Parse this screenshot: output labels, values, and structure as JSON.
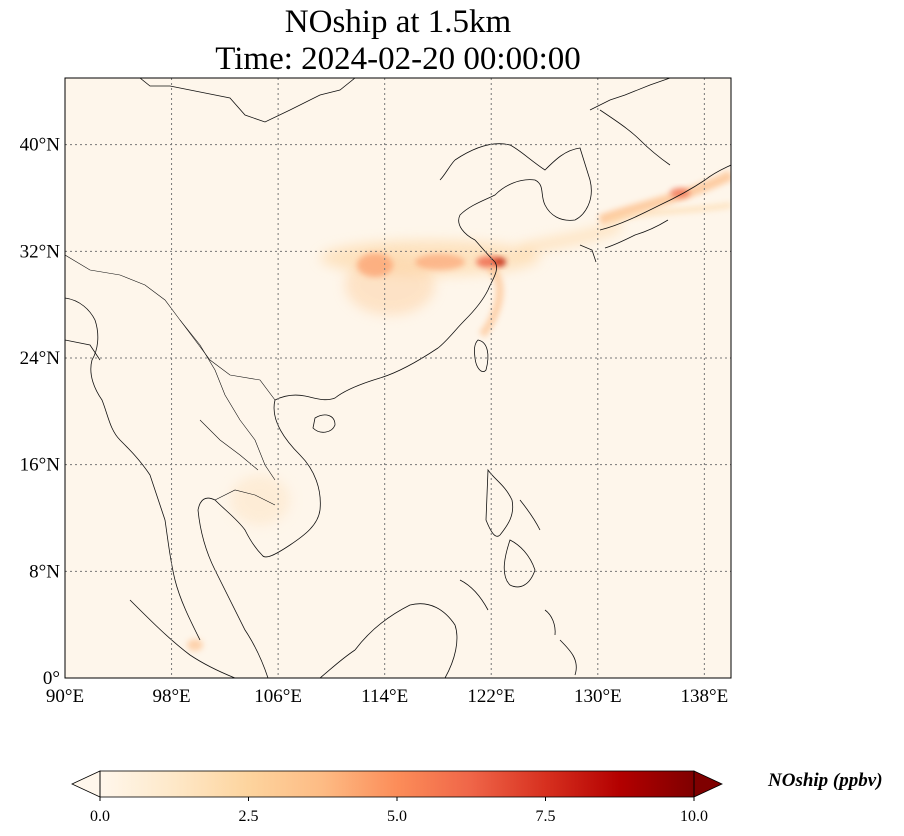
{
  "title": {
    "line1": "NOship at 1.5km",
    "line2": "Time: 2024-02-20 00:00:00"
  },
  "map": {
    "extent": {
      "lon": [
        90,
        140
      ],
      "lat": [
        0,
        45
      ]
    },
    "lat_ticks": [
      {
        "value": 40,
        "label": "40°N"
      },
      {
        "value": 32,
        "label": "32°N"
      },
      {
        "value": 24,
        "label": "24°N"
      },
      {
        "value": 16,
        "label": "16°N"
      },
      {
        "value": 8,
        "label": "8°N"
      },
      {
        "value": 0,
        "label": "0°"
      }
    ],
    "lon_ticks": [
      {
        "value": 90,
        "label": "90°E"
      },
      {
        "value": 98,
        "label": "98°E"
      },
      {
        "value": 106,
        "label": "106°E"
      },
      {
        "value": 114,
        "label": "114°E"
      },
      {
        "value": 122,
        "label": "122°E"
      },
      {
        "value": 130,
        "label": "130°E"
      },
      {
        "value": 138,
        "label": "138°E"
      }
    ],
    "gridlines": "dotted",
    "colormap": "OrRd"
  },
  "colorbar": {
    "label": "NOship (ppbv)",
    "range": [
      0,
      10
    ],
    "extend": "both",
    "ticks": [
      "0.0",
      "2.5",
      "5.0",
      "7.5",
      "10.0"
    ],
    "colors": [
      "#fff7ec",
      "#fee8c8",
      "#fdd49e",
      "#fdbb84",
      "#fc8d59",
      "#ef6548",
      "#d7301f",
      "#b30000",
      "#7f0000"
    ]
  }
}
